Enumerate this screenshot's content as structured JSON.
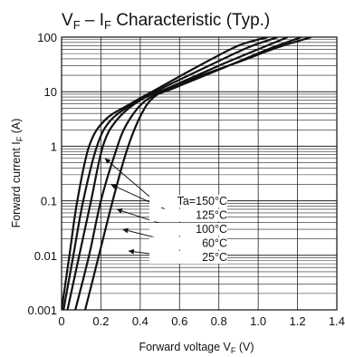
{
  "chart_data": {
    "type": "line",
    "title": {
      "main": "V",
      "main_sub": "F",
      "dash": " – I",
      "dash_sub": "F",
      "rest": " Characteristic (Typ.)"
    },
    "xlabel": {
      "text": "Forward voltage  V",
      "sub": "F",
      "unit": " (V)"
    },
    "ylabel": {
      "text": "Forward current  I",
      "sub": "F",
      "unit": " (A)"
    },
    "xlim": [
      0,
      1.4
    ],
    "ylim": [
      0.001,
      100
    ],
    "yscale": "log",
    "x_ticks": [
      "0",
      "0.2",
      "0.4",
      "0.6",
      "0.8",
      "1.0",
      "1.2",
      "1.4"
    ],
    "y_ticks": [
      "0.001",
      "0.01",
      "0.1",
      "1",
      "10",
      "100"
    ],
    "grid": true,
    "series": [
      {
        "name": "Ta=150°C",
        "x": [
          0.0,
          0.04,
          0.08,
          0.14,
          0.22,
          0.35,
          0.5,
          0.7,
          0.9,
          1.05
        ],
        "y": [
          0.001,
          0.01,
          0.1,
          1,
          3,
          6,
          12,
          30,
          70,
          100
        ]
      },
      {
        "name": "125°C",
        "x": [
          0.01,
          0.06,
          0.11,
          0.18,
          0.25,
          0.38,
          0.52,
          0.75,
          0.95,
          1.1
        ],
        "y": [
          0.001,
          0.01,
          0.1,
          1,
          3,
          6.5,
          12,
          30,
          65,
          100
        ]
      },
      {
        "name": "100°C",
        "x": [
          0.03,
          0.09,
          0.15,
          0.21,
          0.28,
          0.4,
          0.55,
          0.8,
          1.0,
          1.15
        ],
        "y": [
          0.001,
          0.01,
          0.1,
          1,
          3,
          7,
          12,
          30,
          60,
          100
        ]
      },
      {
        "name": "60°C",
        "x": [
          0.07,
          0.14,
          0.2,
          0.27,
          0.33,
          0.43,
          0.58,
          0.85,
          1.05,
          1.22
        ],
        "y": [
          0.001,
          0.01,
          0.1,
          0.7,
          2.5,
          7,
          12,
          30,
          60,
          100
        ]
      },
      {
        "name": "25°C",
        "x": [
          0.12,
          0.19,
          0.26,
          0.33,
          0.4,
          0.47,
          0.6,
          0.9,
          1.1,
          1.27
        ],
        "y": [
          0.001,
          0.01,
          0.1,
          0.8,
          3.5,
          8,
          14,
          35,
          65,
          100
        ]
      }
    ],
    "legend": [
      "Ta=150°C",
      "125°C",
      "100°C",
      "60°C",
      "25°C"
    ],
    "legend_placement": "bottom-right"
  }
}
